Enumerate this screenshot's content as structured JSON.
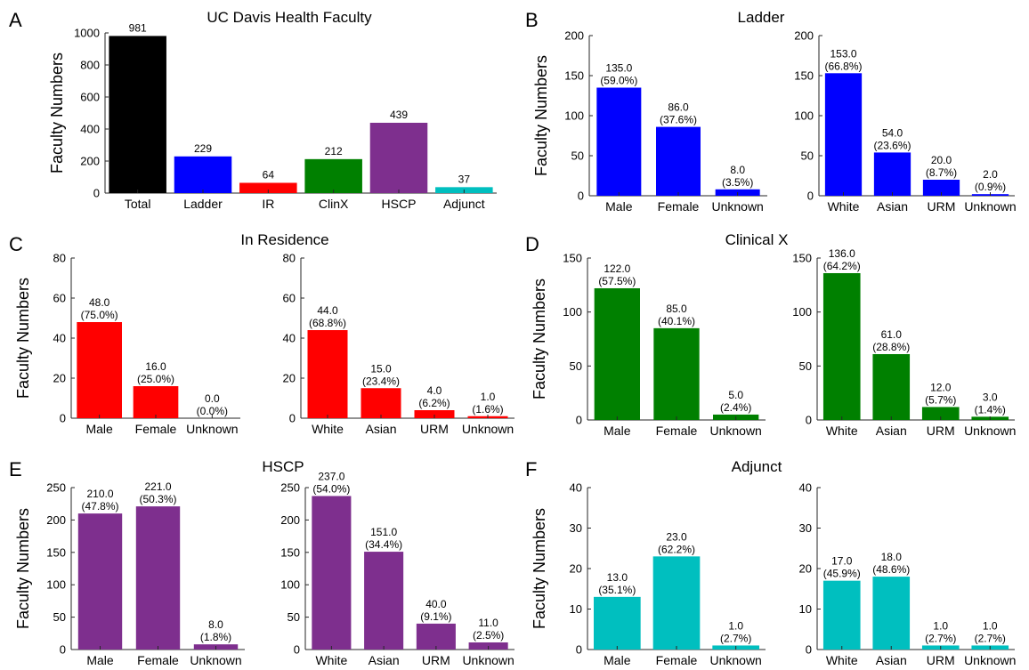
{
  "chart_data": [
    {
      "panel": "A",
      "title": "UC Davis Health Faculty",
      "ylabel": "Faculty Numbers",
      "type": "bar",
      "ylim": [
        0,
        1000
      ],
      "yticks": [
        0,
        200,
        400,
        600,
        800,
        1000
      ],
      "categories": [
        "Total",
        "Ladder",
        "IR",
        "ClinX",
        "HSCP",
        "Adjunct"
      ],
      "values": [
        981,
        229,
        64,
        212,
        439,
        37
      ],
      "labels": [
        [
          "981"
        ],
        [
          "229"
        ],
        [
          "64"
        ],
        [
          "212"
        ],
        [
          "439"
        ],
        [
          "37"
        ]
      ],
      "colors": [
        "#000000",
        "#0000ff",
        "#ff0000",
        "#008000",
        "#7e2f8e",
        "#00bfbf"
      ]
    },
    {
      "panel": "B",
      "title": "Ladder",
      "ylabel": "Faculty Numbers",
      "type": "bar",
      "ylim": [
        0,
        200
      ],
      "yticks": [
        0,
        50,
        100,
        150,
        200
      ],
      "categories": [
        "Male",
        "Female",
        "Unknown"
      ],
      "values": [
        135,
        86,
        8
      ],
      "labels": [
        [
          "135.0",
          "(59.0%)"
        ],
        [
          "86.0",
          "(37.6%)"
        ],
        [
          "8.0",
          "(3.5%)"
        ]
      ],
      "colors": [
        "#0000ff",
        "#0000ff",
        "#0000ff"
      ]
    },
    {
      "ylabel": "",
      "type": "bar",
      "ylim": [
        0,
        200
      ],
      "yticks": [
        0,
        50,
        100,
        150,
        200
      ],
      "categories": [
        "White",
        "Asian",
        "URM",
        "Unknown"
      ],
      "values": [
        153,
        54,
        20,
        2
      ],
      "labels": [
        [
          "153.0",
          "(66.8%)"
        ],
        [
          "54.0",
          "(23.6%)"
        ],
        [
          "20.0",
          "(8.7%)"
        ],
        [
          "2.0",
          "(0.9%)"
        ]
      ],
      "colors": [
        "#0000ff",
        "#0000ff",
        "#0000ff",
        "#0000ff"
      ]
    },
    {
      "panel": "C",
      "title": "In Residence",
      "ylabel": "Faculty Numbers",
      "type": "bar",
      "ylim": [
        0,
        80
      ],
      "yticks": [
        0,
        20,
        40,
        60,
        80
      ],
      "categories": [
        "Male",
        "Female",
        "Unknown"
      ],
      "values": [
        48,
        16,
        0
      ],
      "labels": [
        [
          "48.0",
          "(75.0%)"
        ],
        [
          "16.0",
          "(25.0%)"
        ],
        [
          "0.0",
          "(0.0%)"
        ]
      ],
      "colors": [
        "#ff0000",
        "#ff0000",
        "#ff0000"
      ]
    },
    {
      "ylabel": "",
      "type": "bar",
      "ylim": [
        0,
        80
      ],
      "yticks": [
        0,
        20,
        40,
        60,
        80
      ],
      "categories": [
        "White",
        "Asian",
        "URM",
        "Unknown"
      ],
      "values": [
        44,
        15,
        4,
        1
      ],
      "labels": [
        [
          "44.0",
          "(68.8%)"
        ],
        [
          "15.0",
          "(23.4%)"
        ],
        [
          "4.0",
          "(6.2%)"
        ],
        [
          "1.0",
          "(1.6%)"
        ]
      ],
      "colors": [
        "#ff0000",
        "#ff0000",
        "#ff0000",
        "#ff0000"
      ]
    },
    {
      "panel": "D",
      "title": "Clinical X",
      "ylabel": "Faculty Numbers",
      "type": "bar",
      "ylim": [
        0,
        150
      ],
      "yticks": [
        0,
        50,
        100,
        150
      ],
      "categories": [
        "Male",
        "Female",
        "Unknown"
      ],
      "values": [
        122,
        85,
        5
      ],
      "labels": [
        [
          "122.0",
          "(57.5%)"
        ],
        [
          "85.0",
          "(40.1%)"
        ],
        [
          "5.0",
          "(2.4%)"
        ]
      ],
      "colors": [
        "#008000",
        "#008000",
        "#008000"
      ]
    },
    {
      "ylabel": "",
      "type": "bar",
      "ylim": [
        0,
        150
      ],
      "yticks": [
        0,
        50,
        100,
        150
      ],
      "categories": [
        "White",
        "Asian",
        "URM",
        "Unknown"
      ],
      "values": [
        136,
        61,
        12,
        3
      ],
      "labels": [
        [
          "136.0",
          "(64.2%)"
        ],
        [
          "61.0",
          "(28.8%)"
        ],
        [
          "12.0",
          "(5.7%)"
        ],
        [
          "3.0",
          "(1.4%)"
        ]
      ],
      "colors": [
        "#008000",
        "#008000",
        "#008000",
        "#008000"
      ]
    },
    {
      "panel": "E",
      "title": "HSCP",
      "ylabel": "Faculty Numbers",
      "type": "bar",
      "ylim": [
        0,
        250
      ],
      "yticks": [
        0,
        50,
        100,
        150,
        200,
        250
      ],
      "categories": [
        "Male",
        "Female",
        "Unknown"
      ],
      "values": [
        210,
        221,
        8
      ],
      "labels": [
        [
          "210.0",
          "(47.8%)"
        ],
        [
          "221.0",
          "(50.3%)"
        ],
        [
          "8.0",
          "(1.8%)"
        ]
      ],
      "colors": [
        "#7e2f8e",
        "#7e2f8e",
        "#7e2f8e"
      ]
    },
    {
      "ylabel": "",
      "type": "bar",
      "ylim": [
        0,
        250
      ],
      "yticks": [
        0,
        50,
        100,
        150,
        200,
        250
      ],
      "categories": [
        "White",
        "Asian",
        "URM",
        "Unknown"
      ],
      "values": [
        237,
        151,
        40,
        11
      ],
      "labels": [
        [
          "237.0",
          "(54.0%)"
        ],
        [
          "151.0",
          "(34.4%)"
        ],
        [
          "40.0",
          "(9.1%)"
        ],
        [
          "11.0",
          "(2.5%)"
        ]
      ],
      "colors": [
        "#7e2f8e",
        "#7e2f8e",
        "#7e2f8e",
        "#7e2f8e"
      ]
    },
    {
      "panel": "F",
      "title": "Adjunct",
      "ylabel": "Faculty Numbers",
      "type": "bar",
      "ylim": [
        0,
        40
      ],
      "yticks": [
        0,
        10,
        20,
        30,
        40
      ],
      "categories": [
        "Male",
        "Female",
        "Unknown"
      ],
      "values": [
        13,
        23,
        1
      ],
      "labels": [
        [
          "13.0",
          "(35.1%)"
        ],
        [
          "23.0",
          "(62.2%)"
        ],
        [
          "1.0",
          "(2.7%)"
        ]
      ],
      "colors": [
        "#00bfbf",
        "#00bfbf",
        "#00bfbf"
      ]
    },
    {
      "ylabel": "",
      "type": "bar",
      "ylim": [
        0,
        40
      ],
      "yticks": [
        0,
        10,
        20,
        30,
        40
      ],
      "categories": [
        "White",
        "Asian",
        "URM",
        "Unknown"
      ],
      "values": [
        17,
        18,
        1,
        1
      ],
      "labels": [
        [
          "17.0",
          "(45.9%)"
        ],
        [
          "18.0",
          "(48.6%)"
        ],
        [
          "1.0",
          "(2.7%)"
        ],
        [
          "1.0",
          "(2.7%)"
        ]
      ],
      "colors": [
        "#00bfbf",
        "#00bfbf",
        "#00bfbf",
        "#00bfbf"
      ]
    }
  ]
}
